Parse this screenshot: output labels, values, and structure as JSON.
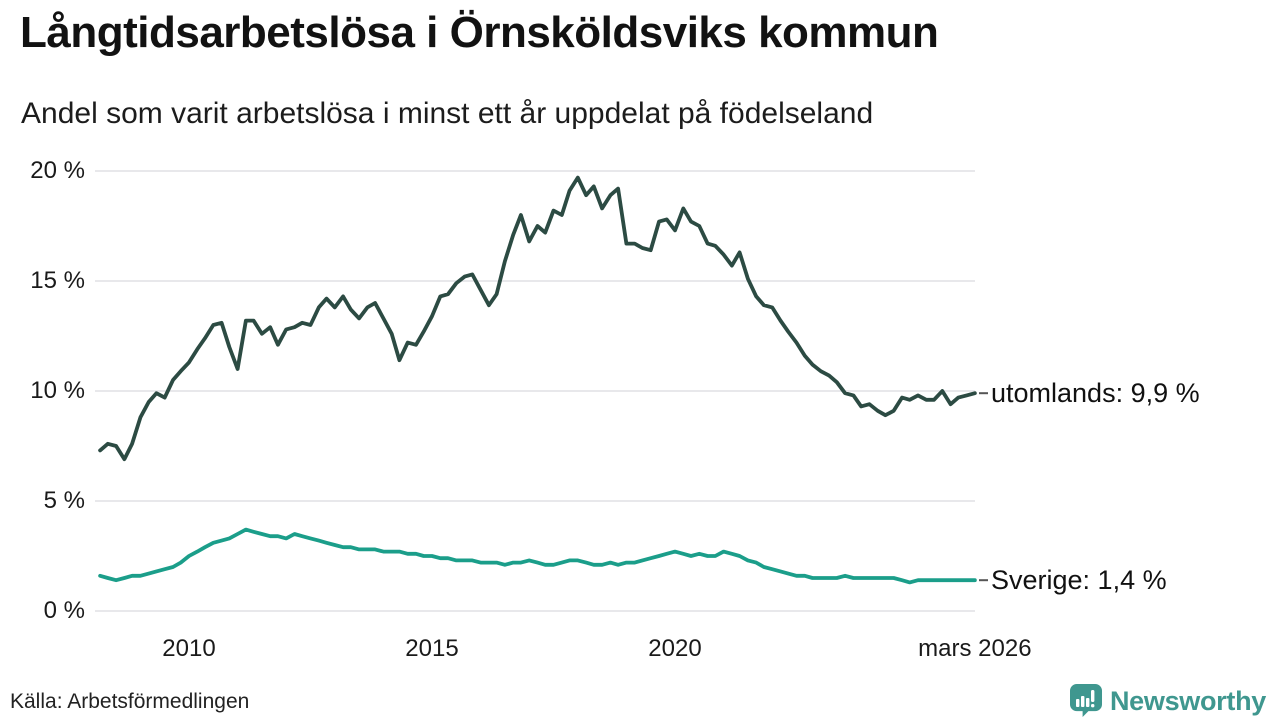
{
  "header": {
    "title": "Långtidsarbetslösa i Örnsköldsviks kommun",
    "subtitle": "Andel som varit arbetslösa i minst ett år uppdelat på födelseland"
  },
  "footer": {
    "source": "Källa: Arbetsförmedlingen",
    "brand_name": "Newsworthy"
  },
  "colors": {
    "utomlands_line": "#2c4b43",
    "sverige_line": "#1b9e8a",
    "gridline": "#e8e8eb",
    "tick_text": "#1a1a1a",
    "connector_dash": "#555555",
    "brand_teal": "#3f978f",
    "background": "#ffffff"
  },
  "chart_data": {
    "type": "line",
    "title": "Långtidsarbetslösa i Örnsköldsviks kommun",
    "subtitle": "Andel som varit arbetslösa i minst ett år uppdelat på födelseland",
    "xlabel": "",
    "ylabel": "",
    "ylim": [
      0,
      20
    ],
    "xlim": [
      2008.08,
      2026.25
    ],
    "grid": true,
    "legend_position": "line-end labels at right",
    "yticks": [
      {
        "value": 0,
        "label": "0 %"
      },
      {
        "value": 5,
        "label": "5 %"
      },
      {
        "value": 10,
        "label": "10 %"
      },
      {
        "value": 15,
        "label": "15 %"
      },
      {
        "value": 20,
        "label": "20 %"
      }
    ],
    "xticks": [
      {
        "year": 2010,
        "label": "2010"
      },
      {
        "year": 2015,
        "label": "2015"
      },
      {
        "year": 2020,
        "label": "2020"
      },
      {
        "year": 2026.17,
        "label": "mars 2026"
      }
    ],
    "x": [
      2008.17,
      2008.33,
      2008.5,
      2008.67,
      2008.83,
      2009,
      2009.17,
      2009.33,
      2009.5,
      2009.67,
      2009.83,
      2010,
      2010.17,
      2010.33,
      2010.5,
      2010.67,
      2010.83,
      2011,
      2011.17,
      2011.33,
      2011.5,
      2011.67,
      2011.83,
      2012,
      2012.17,
      2012.33,
      2012.5,
      2012.67,
      2012.83,
      2013,
      2013.17,
      2013.33,
      2013.5,
      2013.67,
      2013.83,
      2014,
      2014.17,
      2014.33,
      2014.5,
      2014.67,
      2014.83,
      2015,
      2015.17,
      2015.33,
      2015.5,
      2015.67,
      2015.83,
      2016,
      2016.17,
      2016.33,
      2016.5,
      2016.67,
      2016.83,
      2017,
      2017.17,
      2017.33,
      2017.5,
      2017.67,
      2017.83,
      2018,
      2018.17,
      2018.33,
      2018.5,
      2018.67,
      2018.83,
      2019,
      2019.17,
      2019.33,
      2019.5,
      2019.67,
      2019.83,
      2020,
      2020.17,
      2020.33,
      2020.5,
      2020.67,
      2020.83,
      2021,
      2021.17,
      2021.33,
      2021.5,
      2021.67,
      2021.83,
      2022,
      2022.17,
      2022.33,
      2022.5,
      2022.67,
      2022.83,
      2023,
      2023.17,
      2023.33,
      2023.5,
      2023.67,
      2023.83,
      2024,
      2024.17,
      2024.33,
      2024.5,
      2024.67,
      2024.83,
      2025,
      2025.17,
      2025.33,
      2025.5,
      2025.67,
      2025.83,
      2026,
      2026.17
    ],
    "series": [
      {
        "name": "utomlands",
        "end_label": "utomlands: 9,9 %",
        "final_value": "9,9 %",
        "color": "#2c4b43",
        "values": [
          7.3,
          7.6,
          7.5,
          6.9,
          7.6,
          8.8,
          9.5,
          9.9,
          9.7,
          10.5,
          10.9,
          11.3,
          11.9,
          12.4,
          13.0,
          13.1,
          12.0,
          11.0,
          13.2,
          13.2,
          12.6,
          12.9,
          12.1,
          12.8,
          12.9,
          13.1,
          13.0,
          13.8,
          14.2,
          13.8,
          14.3,
          13.7,
          13.3,
          13.8,
          14.0,
          13.3,
          12.6,
          11.4,
          12.2,
          12.1,
          12.7,
          13.4,
          14.3,
          14.4,
          14.9,
          15.2,
          15.3,
          14.6,
          13.9,
          14.4,
          15.9,
          17.1,
          18.0,
          16.8,
          17.5,
          17.2,
          18.2,
          18.0,
          19.1,
          19.7,
          18.9,
          19.3,
          18.3,
          18.9,
          19.2,
          16.7,
          16.7,
          16.5,
          16.4,
          17.7,
          17.8,
          17.3,
          18.3,
          17.7,
          17.5,
          16.7,
          16.6,
          16.2,
          15.7,
          16.3,
          15.1,
          14.3,
          13.9,
          13.8,
          13.2,
          12.7,
          12.2,
          11.6,
          11.2,
          10.9,
          10.7,
          10.4,
          9.9,
          9.8,
          9.3,
          9.4,
          9.1,
          8.9,
          9.1,
          9.7,
          9.6,
          9.8,
          9.6,
          9.6,
          10.0,
          9.4,
          9.7,
          9.8,
          9.9
        ]
      },
      {
        "name": "Sverige",
        "end_label": "Sverige: 1,4 %",
        "final_value": "1,4 %",
        "color": "#1b9e8a",
        "values": [
          1.6,
          1.5,
          1.4,
          1.5,
          1.6,
          1.6,
          1.7,
          1.8,
          1.9,
          2.0,
          2.2,
          2.5,
          2.7,
          2.9,
          3.1,
          3.2,
          3.3,
          3.5,
          3.7,
          3.6,
          3.5,
          3.4,
          3.4,
          3.3,
          3.5,
          3.4,
          3.3,
          3.2,
          3.1,
          3.0,
          2.9,
          2.9,
          2.8,
          2.8,
          2.8,
          2.7,
          2.7,
          2.7,
          2.6,
          2.6,
          2.5,
          2.5,
          2.4,
          2.4,
          2.3,
          2.3,
          2.3,
          2.2,
          2.2,
          2.2,
          2.1,
          2.2,
          2.2,
          2.3,
          2.2,
          2.1,
          2.1,
          2.2,
          2.3,
          2.3,
          2.2,
          2.1,
          2.1,
          2.2,
          2.1,
          2.2,
          2.2,
          2.3,
          2.4,
          2.5,
          2.6,
          2.7,
          2.6,
          2.5,
          2.6,
          2.5,
          2.5,
          2.7,
          2.6,
          2.5,
          2.3,
          2.2,
          2.0,
          1.9,
          1.8,
          1.7,
          1.6,
          1.6,
          1.5,
          1.5,
          1.5,
          1.5,
          1.6,
          1.5,
          1.5,
          1.5,
          1.5,
          1.5,
          1.5,
          1.4,
          1.3,
          1.4,
          1.4,
          1.4,
          1.4,
          1.4,
          1.4,
          1.4,
          1.4
        ]
      }
    ]
  }
}
